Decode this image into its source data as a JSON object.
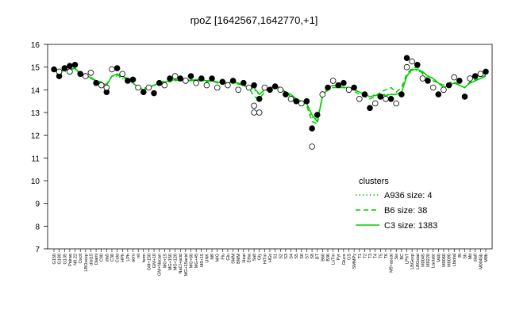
{
  "chart_data": {
    "type": "line",
    "title": "rpoZ [1642567,1642770,+1]",
    "xlabel": "",
    "ylabel": "",
    "ylim": [
      7,
      16
    ],
    "yticks": [
      7,
      8,
      9,
      10,
      11,
      12,
      13,
      14,
      15,
      16
    ],
    "x_tick_labels": [
      "G150",
      "G180",
      "G135",
      "Pairaq",
      "N0.22",
      "Oxctl",
      "LBOxexp",
      "dist15",
      "Diaml",
      "C90",
      "dia5",
      "C30",
      "Cold",
      "HPh",
      "LPh",
      "aero",
      "nit",
      "ferm",
      "GM+150",
      "GM+10",
      "GM+Nacan",
      "MG+15",
      "MG+150",
      "MG+120",
      "NaCl+acid",
      "MG+15acid",
      "MG+60",
      "MG+45",
      "M0+15",
      "UNK",
      "M9",
      "M/G",
      "Flu",
      "Glu",
      "SMM",
      "BMM",
      "Heat",
      "Etha",
      "Salt",
      "Gly",
      "HiTm",
      "HGs",
      "S1",
      "S2",
      "S3",
      "S4",
      "S5",
      "S6",
      "S7",
      "S8",
      "BT",
      "B60",
      "B36",
      "LoTm",
      "Pyr",
      "Gluco",
      "GS",
      "SMMPy",
      "T1",
      "T2",
      "T3",
      "T4",
      "T5",
      "T6",
      "M9+ascat",
      "Sw",
      "BC",
      "LPhT",
      "LBGexp",
      "LBGstat",
      "M0045",
      "M0220",
      "Lactate",
      "M40",
      "M0060",
      "M0090",
      "Lbiotal",
      "Bl",
      "Sh",
      "Mit",
      "dia0",
      "M0045b",
      "M9b"
    ],
    "series": [
      {
        "name": "C3 size: 1383",
        "style": "solid",
        "color": "#00cc00",
        "values": [
          14.8,
          14.8,
          14.85,
          14.9,
          14.95,
          14.7,
          14.6,
          14.55,
          14.4,
          14.3,
          14.2,
          14.6,
          14.7,
          14.6,
          14.5,
          14.3,
          14.1,
          14.0,
          14.1,
          14.2,
          14.3,
          14.35,
          14.4,
          14.45,
          14.4,
          14.45,
          14.4,
          14.45,
          14.45,
          14.4,
          14.4,
          14.3,
          14.35,
          14.3,
          14.35,
          14.3,
          14.2,
          14.1,
          14.1,
          13.8,
          14.0,
          14.1,
          14.15,
          14.1,
          13.9,
          13.8,
          13.6,
          13.5,
          13.4,
          12.9,
          12.6,
          13.7,
          14.1,
          14.2,
          14.15,
          14.1,
          14.1,
          14.0,
          13.9,
          13.8,
          13.7,
          13.75,
          13.8,
          13.75,
          13.8,
          13.8,
          13.9,
          14.6,
          14.9,
          14.9,
          14.8,
          14.6,
          14.5,
          14.3,
          14.1,
          14.2,
          14.3,
          14.2,
          14.1,
          14.3,
          14.4,
          14.5,
          14.6
        ]
      },
      {
        "name": "B6 size: 38",
        "style": "dashed",
        "color": "#00cc00",
        "values": [
          14.85,
          14.8,
          14.9,
          14.95,
          14.9,
          14.75,
          14.6,
          14.5,
          14.4,
          14.35,
          14.25,
          14.6,
          14.65,
          14.55,
          14.45,
          14.3,
          14.1,
          14.05,
          14.15,
          14.2,
          14.3,
          14.4,
          14.35,
          14.4,
          14.45,
          14.4,
          14.45,
          14.4,
          14.4,
          14.35,
          14.4,
          14.35,
          14.3,
          14.35,
          14.3,
          14.25,
          14.2,
          14.1,
          13.7,
          13.6,
          13.9,
          14.1,
          14.1,
          14.0,
          13.9,
          13.7,
          13.6,
          13.5,
          13.3,
          12.6,
          12.5,
          13.8,
          14.0,
          14.1,
          14.1,
          14.1,
          14.0,
          13.95,
          13.8,
          13.7,
          13.6,
          13.7,
          13.9,
          14.0,
          14.1,
          13.9,
          14.1,
          14.7,
          14.95,
          15.0,
          14.7,
          14.5,
          14.4,
          14.3,
          14.2,
          14.3,
          14.35,
          14.2,
          14.1,
          14.35,
          14.45,
          14.5,
          14.65
        ]
      },
      {
        "name": "A936 size: 4",
        "style": "dotted",
        "color": "#00cc00",
        "values": [
          14.8,
          14.8,
          14.8,
          14.9,
          14.9,
          14.7,
          14.6,
          14.5,
          14.4,
          14.3,
          14.2,
          14.6,
          14.6,
          14.5,
          14.4,
          14.3,
          14.1,
          14.0,
          14.1,
          14.2,
          14.3,
          14.35,
          14.4,
          14.4,
          14.4,
          14.4,
          14.4,
          14.4,
          14.4,
          14.4,
          14.4,
          14.3,
          14.3,
          14.3,
          14.3,
          14.3,
          14.2,
          14.1,
          14.0,
          13.8,
          14.0,
          14.1,
          14.1,
          14.1,
          13.9,
          13.8,
          13.6,
          13.5,
          13.4,
          12.8,
          12.7,
          13.7,
          14.0,
          14.1,
          14.1,
          14.1,
          14.0,
          14.0,
          13.9,
          13.8,
          13.7,
          13.8,
          13.8,
          13.8,
          13.8,
          13.8,
          13.9,
          14.6,
          14.85,
          14.85,
          14.75,
          14.6,
          14.5,
          14.3,
          14.1,
          14.2,
          14.3,
          14.2,
          14.1,
          14.3,
          14.4,
          14.5,
          14.6
        ]
      }
    ],
    "points": [
      {
        "x": 0,
        "y": 14.9,
        "filled": true
      },
      {
        "x": 1,
        "y": 14.6,
        "filled": true
      },
      {
        "x": 1,
        "y": 14.8,
        "filled": false
      },
      {
        "x": 2,
        "y": 14.95,
        "filled": true
      },
      {
        "x": 3,
        "y": 15.05,
        "filled": true
      },
      {
        "x": 3,
        "y": 14.8,
        "filled": false
      },
      {
        "x": 4,
        "y": 15.1,
        "filled": true
      },
      {
        "x": 5,
        "y": 14.7,
        "filled": true
      },
      {
        "x": 6,
        "y": 14.6,
        "filled": false
      },
      {
        "x": 7,
        "y": 14.75,
        "filled": false
      },
      {
        "x": 8,
        "y": 14.3,
        "filled": true
      },
      {
        "x": 9,
        "y": 14.2,
        "filled": false
      },
      {
        "x": 10,
        "y": 13.9,
        "filled": true
      },
      {
        "x": 10,
        "y": 14.1,
        "filled": false
      },
      {
        "x": 11,
        "y": 14.9,
        "filled": false
      },
      {
        "x": 12,
        "y": 14.95,
        "filled": true
      },
      {
        "x": 13,
        "y": 14.7,
        "filled": false
      },
      {
        "x": 14,
        "y": 14.4,
        "filled": true
      },
      {
        "x": 15,
        "y": 14.45,
        "filled": true
      },
      {
        "x": 16,
        "y": 14.1,
        "filled": false
      },
      {
        "x": 17,
        "y": 13.9,
        "filled": true
      },
      {
        "x": 18,
        "y": 14.1,
        "filled": false
      },
      {
        "x": 19,
        "y": 13.85,
        "filled": true
      },
      {
        "x": 20,
        "y": 14.3,
        "filled": true
      },
      {
        "x": 21,
        "y": 14.2,
        "filled": false
      },
      {
        "x": 22,
        "y": 14.5,
        "filled": true
      },
      {
        "x": 23,
        "y": 14.6,
        "filled": false
      },
      {
        "x": 24,
        "y": 14.5,
        "filled": true
      },
      {
        "x": 25,
        "y": 14.4,
        "filled": false
      },
      {
        "x": 26,
        "y": 14.6,
        "filled": true
      },
      {
        "x": 27,
        "y": 14.3,
        "filled": false
      },
      {
        "x": 28,
        "y": 14.5,
        "filled": true
      },
      {
        "x": 29,
        "y": 14.2,
        "filled": false
      },
      {
        "x": 30,
        "y": 14.5,
        "filled": true
      },
      {
        "x": 31,
        "y": 14.1,
        "filled": false
      },
      {
        "x": 32,
        "y": 14.35,
        "filled": true
      },
      {
        "x": 33,
        "y": 14.2,
        "filled": false
      },
      {
        "x": 34,
        "y": 14.4,
        "filled": true
      },
      {
        "x": 35,
        "y": 14.0,
        "filled": false
      },
      {
        "x": 36,
        "y": 14.3,
        "filled": true
      },
      {
        "x": 37,
        "y": 14.1,
        "filled": false
      },
      {
        "x": 38,
        "y": 14.2,
        "filled": true
      },
      {
        "x": 38,
        "y": 13.3,
        "filled": false
      },
      {
        "x": 38,
        "y": 13.0,
        "filled": false
      },
      {
        "x": 39,
        "y": 13.6,
        "filled": true
      },
      {
        "x": 39,
        "y": 13.0,
        "filled": false
      },
      {
        "x": 40,
        "y": 14.1,
        "filled": false
      },
      {
        "x": 41,
        "y": 14.0,
        "filled": true
      },
      {
        "x": 42,
        "y": 14.15,
        "filled": true
      },
      {
        "x": 43,
        "y": 14.0,
        "filled": false
      },
      {
        "x": 44,
        "y": 13.8,
        "filled": true
      },
      {
        "x": 45,
        "y": 13.6,
        "filled": false
      },
      {
        "x": 46,
        "y": 13.5,
        "filled": true
      },
      {
        "x": 47,
        "y": 13.4,
        "filled": false
      },
      {
        "x": 48,
        "y": 13.5,
        "filled": true
      },
      {
        "x": 49,
        "y": 12.3,
        "filled": true
      },
      {
        "x": 49,
        "y": 11.5,
        "filled": false
      },
      {
        "x": 50,
        "y": 12.9,
        "filled": true
      },
      {
        "x": 51,
        "y": 13.8,
        "filled": false
      },
      {
        "x": 52,
        "y": 14.1,
        "filled": true
      },
      {
        "x": 53,
        "y": 14.4,
        "filled": false
      },
      {
        "x": 54,
        "y": 14.2,
        "filled": true
      },
      {
        "x": 55,
        "y": 14.3,
        "filled": true
      },
      {
        "x": 56,
        "y": 14.0,
        "filled": false
      },
      {
        "x": 57,
        "y": 14.1,
        "filled": true
      },
      {
        "x": 58,
        "y": 13.6,
        "filled": false
      },
      {
        "x": 59,
        "y": 13.8,
        "filled": true
      },
      {
        "x": 60,
        "y": 13.2,
        "filled": true
      },
      {
        "x": 61,
        "y": 13.4,
        "filled": false
      },
      {
        "x": 62,
        "y": 13.7,
        "filled": true
      },
      {
        "x": 63,
        "y": 13.6,
        "filled": false
      },
      {
        "x": 64,
        "y": 13.6,
        "filled": true
      },
      {
        "x": 65,
        "y": 13.4,
        "filled": false
      },
      {
        "x": 66,
        "y": 13.8,
        "filled": true
      },
      {
        "x": 67,
        "y": 15.4,
        "filled": true
      },
      {
        "x": 67,
        "y": 15.0,
        "filled": false
      },
      {
        "x": 68,
        "y": 15.25,
        "filled": false
      },
      {
        "x": 69,
        "y": 15.1,
        "filled": true
      },
      {
        "x": 70,
        "y": 14.5,
        "filled": false
      },
      {
        "x": 71,
        "y": 14.4,
        "filled": true
      },
      {
        "x": 72,
        "y": 14.1,
        "filled": false
      },
      {
        "x": 73,
        "y": 13.8,
        "filled": true
      },
      {
        "x": 74,
        "y": 14.0,
        "filled": false
      },
      {
        "x": 75,
        "y": 14.2,
        "filled": true
      },
      {
        "x": 76,
        "y": 14.55,
        "filled": false
      },
      {
        "x": 77,
        "y": 14.4,
        "filled": true
      },
      {
        "x": 78,
        "y": 13.7,
        "filled": true
      },
      {
        "x": 79,
        "y": 14.5,
        "filled": false
      },
      {
        "x": 80,
        "y": 14.6,
        "filled": true
      },
      {
        "x": 81,
        "y": 14.7,
        "filled": false
      },
      {
        "x": 82,
        "y": 14.8,
        "filled": true
      }
    ],
    "legend": {
      "title": "clusters",
      "placement": "right",
      "entries": [
        "A936 size: 4",
        "B6 size: 38",
        "C3 size: 1383"
      ]
    },
    "grid": false
  }
}
